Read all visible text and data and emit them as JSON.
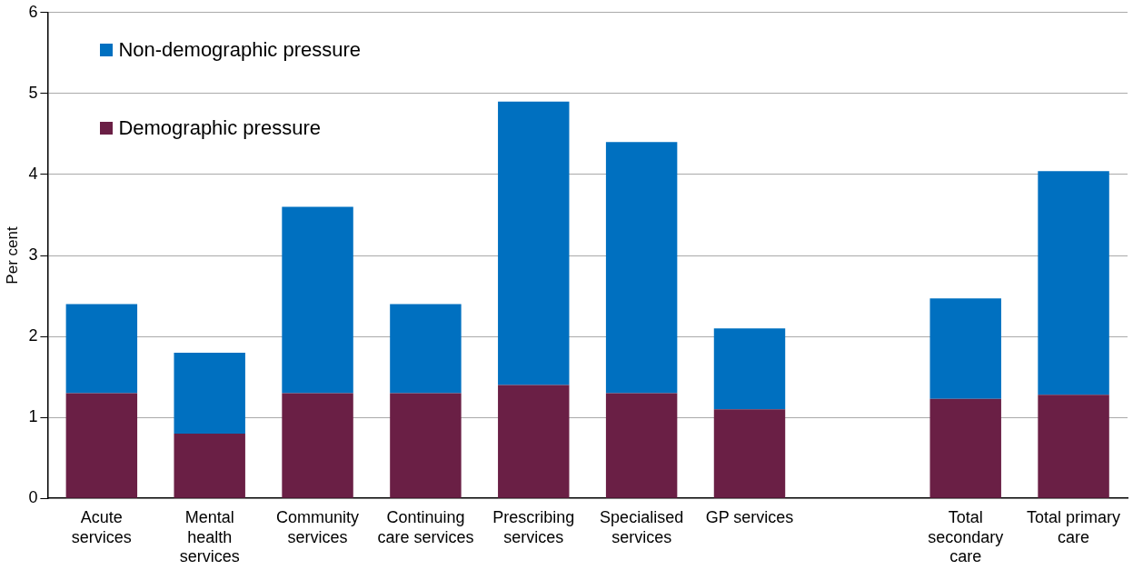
{
  "chart_data": {
    "type": "bar",
    "stacked": true,
    "ylabel": "Per cent",
    "categories": [
      "Acute services",
      "Mental health services",
      "Community services",
      "Continuing care services",
      "Prescribing services",
      "Specialised services",
      "GP services",
      null,
      "Total secondary care",
      "Total primary care"
    ],
    "series": [
      {
        "name": "Demographic pressure",
        "color": "#6a1f45",
        "values": [
          1.3,
          0.8,
          1.3,
          1.3,
          1.4,
          1.3,
          1.1,
          null,
          1.23,
          1.28
        ]
      },
      {
        "name": "Non-demographic pressure",
        "color": "#0070c0",
        "values": [
          1.1,
          1.0,
          2.3,
          1.1,
          3.5,
          3.1,
          1.0,
          null,
          1.24,
          2.76
        ]
      }
    ],
    "ylim": [
      0,
      6
    ],
    "yticks": [
      0,
      1,
      2,
      3,
      4,
      5,
      6
    ],
    "grid": "y",
    "legend": "top left"
  }
}
